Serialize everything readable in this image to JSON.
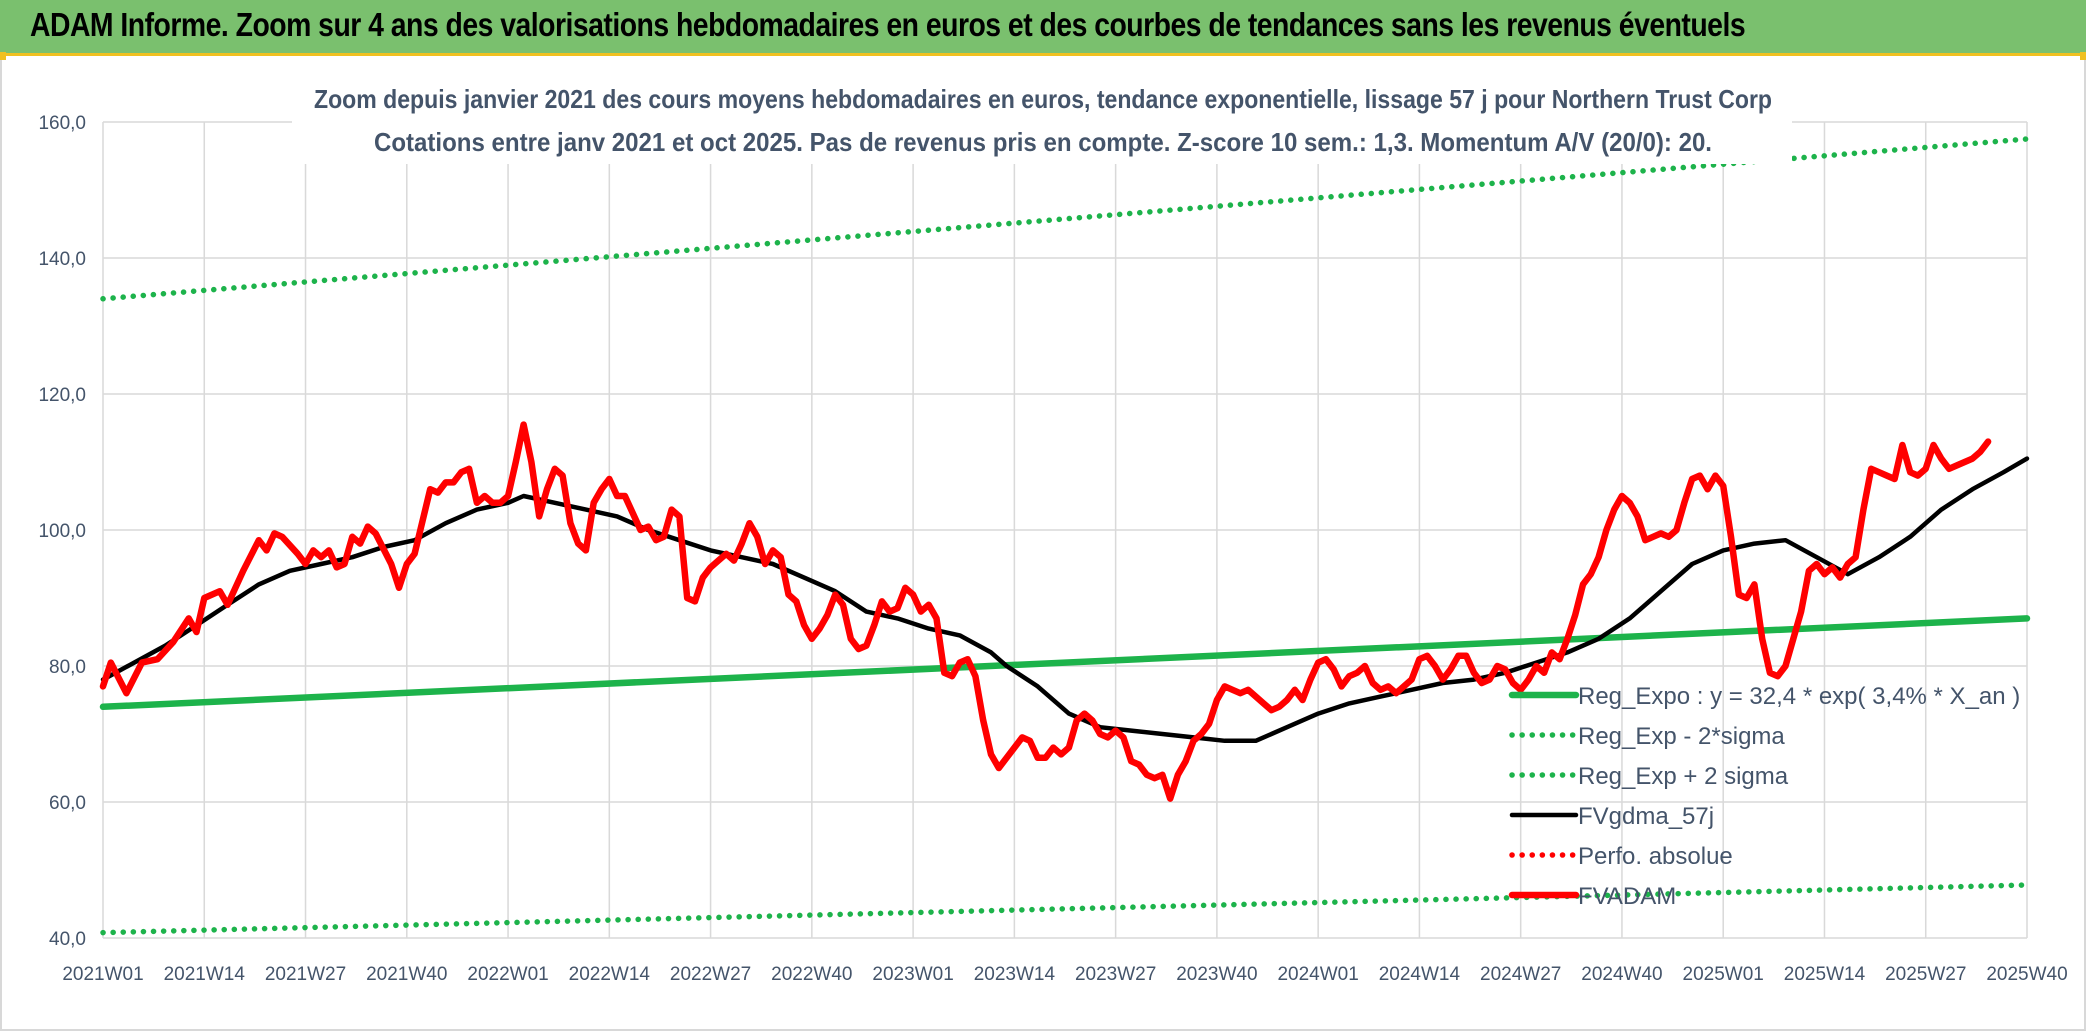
{
  "header": {
    "title": "ADAM Informe. Zoom sur 4 ans des valorisations hebdomadaires en euros et des courbes de tendances sans les revenus éventuels"
  },
  "colors": {
    "header_bg": "#7ac06e",
    "green": "#1db34b",
    "black": "#000000",
    "red": "#ff0000",
    "accent": "#f0c020"
  },
  "chart_data": {
    "type": "line",
    "title_line1": "Zoom depuis janvier 2021 des cours moyens hebdomadaires en euros, tendance exponentielle, lissage 57 j pour Northern Trust Corp",
    "title_line2": "Cotations entre janv 2021 et oct 2025. Pas de revenus pris en compte. Z-score 10 sem.: 1,3. Momentum A/V (20/0): 20.",
    "xlabel": "",
    "ylabel": "",
    "ylim": [
      40,
      160
    ],
    "yticks": [
      "40,0",
      "60,0",
      "80,0",
      "100,0",
      "120,0",
      "140,0",
      "160,0"
    ],
    "yticks_values": [
      40,
      60,
      80,
      100,
      120,
      140,
      160
    ],
    "xlim": [
      0,
      247
    ],
    "xticks": [
      "2021W01",
      "2021W14",
      "2021W27",
      "2021W40",
      "2022W01",
      "2022W14",
      "2022W27",
      "2022W40",
      "2023W01",
      "2023W14",
      "2023W27",
      "2023W40",
      "2024W01",
      "2024W14",
      "2024W27",
      "2024W40",
      "2025W01",
      "2025W14",
      "2025W27",
      "2025W40"
    ],
    "xticks_values": [
      0,
      13,
      26,
      39,
      52,
      65,
      78,
      91,
      104,
      117,
      130,
      143,
      156,
      169,
      182,
      195,
      208,
      221,
      234,
      247
    ],
    "grid": true,
    "legend_position": "bottom-right",
    "series": [
      {
        "name": "Reg_Expo : y = 32,4 * exp( 3,4% *  X_an )",
        "style": "solid-thick",
        "color": "#1db34b",
        "points": [
          [
            0,
            74
          ],
          [
            247,
            87
          ]
        ]
      },
      {
        "name": "Reg_Exp - 2*sigma",
        "style": "dotted",
        "color": "#1db34b",
        "points": [
          [
            0,
            40.8
          ],
          [
            247,
            47.8
          ]
        ]
      },
      {
        "name": "Reg_Exp + 2 sigma",
        "style": "dotted",
        "color": "#1db34b",
        "points": [
          [
            0,
            134
          ],
          [
            247,
            157.5
          ]
        ]
      },
      {
        "name": "FVgdma_57j",
        "style": "solid",
        "color": "#000000",
        "points": [
          [
            0,
            78
          ],
          [
            4,
            80.5
          ],
          [
            8,
            83
          ],
          [
            12,
            86
          ],
          [
            16,
            89
          ],
          [
            20,
            92
          ],
          [
            24,
            94
          ],
          [
            28,
            95
          ],
          [
            32,
            96
          ],
          [
            36,
            97.5
          ],
          [
            40,
            98.5
          ],
          [
            44,
            101
          ],
          [
            48,
            103
          ],
          [
            52,
            104
          ],
          [
            54,
            105
          ],
          [
            58,
            104
          ],
          [
            62,
            103
          ],
          [
            66,
            102
          ],
          [
            70,
            100
          ],
          [
            74,
            98.5
          ],
          [
            78,
            97
          ],
          [
            82,
            96
          ],
          [
            86,
            95
          ],
          [
            90,
            93
          ],
          [
            94,
            91
          ],
          [
            98,
            88
          ],
          [
            102,
            87
          ],
          [
            106,
            85.5
          ],
          [
            110,
            84.5
          ],
          [
            114,
            82
          ],
          [
            116,
            80
          ],
          [
            120,
            77
          ],
          [
            124,
            73
          ],
          [
            128,
            71
          ],
          [
            132,
            70.5
          ],
          [
            136,
            70
          ],
          [
            140,
            69.5
          ],
          [
            144,
            69
          ],
          [
            148,
            69
          ],
          [
            152,
            71
          ],
          [
            156,
            73
          ],
          [
            160,
            74.5
          ],
          [
            164,
            75.5
          ],
          [
            168,
            76.5
          ],
          [
            172,
            77.5
          ],
          [
            176,
            78
          ],
          [
            180,
            79
          ],
          [
            184,
            80.5
          ],
          [
            188,
            82
          ],
          [
            192,
            84
          ],
          [
            196,
            87
          ],
          [
            200,
            91
          ],
          [
            204,
            95
          ],
          [
            208,
            97
          ],
          [
            212,
            98
          ],
          [
            216,
            98.5
          ],
          [
            220,
            96
          ],
          [
            224,
            93.5
          ],
          [
            228,
            96
          ],
          [
            232,
            99
          ],
          [
            236,
            103
          ],
          [
            240,
            106
          ],
          [
            244,
            108.5
          ],
          [
            247,
            110.5
          ]
        ]
      },
      {
        "name": "Perfo. absolue",
        "style": "dotted",
        "color": "#ff0000",
        "points": []
      },
      {
        "name": "FVADAM",
        "style": "solid-thick",
        "color": "#ff0000",
        "points": [
          [
            0,
            77
          ],
          [
            1,
            80.5
          ],
          [
            3,
            76
          ],
          [
            5,
            80.5
          ],
          [
            7,
            81
          ],
          [
            9,
            83.5
          ],
          [
            11,
            87
          ],
          [
            12,
            85
          ],
          [
            13,
            90
          ],
          [
            15,
            91
          ],
          [
            16,
            89
          ],
          [
            18,
            94
          ],
          [
            20,
            98.5
          ],
          [
            21,
            97
          ],
          [
            22,
            99.5
          ],
          [
            23,
            99
          ],
          [
            25,
            96.5
          ],
          [
            26,
            95
          ],
          [
            27,
            97
          ],
          [
            28,
            96
          ],
          [
            29,
            97
          ],
          [
            30,
            94.5
          ],
          [
            31,
            95
          ],
          [
            32,
            99
          ],
          [
            33,
            98
          ],
          [
            34,
            100.5
          ],
          [
            35,
            99.5
          ],
          [
            37,
            95
          ],
          [
            38,
            91.5
          ],
          [
            39,
            95
          ],
          [
            40,
            96.5
          ],
          [
            42,
            106
          ],
          [
            43,
            105.5
          ],
          [
            44,
            107
          ],
          [
            45,
            107
          ],
          [
            46,
            108.5
          ],
          [
            47,
            109
          ],
          [
            48,
            104
          ],
          [
            49,
            105
          ],
          [
            50,
            104
          ],
          [
            51,
            104
          ],
          [
            52,
            105
          ],
          [
            53,
            110
          ],
          [
            54,
            115.5
          ],
          [
            55,
            110
          ],
          [
            56,
            102
          ],
          [
            57,
            106
          ],
          [
            58,
            109
          ],
          [
            59,
            108
          ],
          [
            60,
            101
          ],
          [
            61,
            98
          ],
          [
            62,
            97
          ],
          [
            63,
            104
          ],
          [
            64,
            106
          ],
          [
            65,
            107.5
          ],
          [
            66,
            105
          ],
          [
            67,
            105
          ],
          [
            68,
            102.5
          ],
          [
            69,
            100
          ],
          [
            70,
            100.5
          ],
          [
            71,
            98.5
          ],
          [
            72,
            99
          ],
          [
            73,
            103
          ],
          [
            74,
            102
          ],
          [
            75,
            90
          ],
          [
            76,
            89.5
          ],
          [
            77,
            93
          ],
          [
            78,
            94.5
          ],
          [
            79,
            95.5
          ],
          [
            80,
            96.5
          ],
          [
            81,
            95.5
          ],
          [
            82,
            98
          ],
          [
            83,
            101
          ],
          [
            84,
            99
          ],
          [
            85,
            95
          ],
          [
            86,
            97
          ],
          [
            87,
            96
          ],
          [
            88,
            90.5
          ],
          [
            89,
            89.5
          ],
          [
            90,
            86
          ],
          [
            91,
            84
          ],
          [
            92,
            85.5
          ],
          [
            93,
            87.5
          ],
          [
            94,
            90.5
          ],
          [
            95,
            89
          ],
          [
            96,
            84
          ],
          [
            97,
            82.5
          ],
          [
            98,
            83
          ],
          [
            99,
            86
          ],
          [
            100,
            89.5
          ],
          [
            101,
            88
          ],
          [
            102,
            88.5
          ],
          [
            103,
            91.5
          ],
          [
            104,
            90.5
          ],
          [
            105,
            88
          ],
          [
            106,
            89
          ],
          [
            107,
            87
          ],
          [
            108,
            79
          ],
          [
            109,
            78.5
          ],
          [
            110,
            80.5
          ],
          [
            111,
            81
          ],
          [
            112,
            78.5
          ],
          [
            113,
            72
          ],
          [
            114,
            67
          ],
          [
            115,
            65
          ],
          [
            116,
            66.5
          ],
          [
            117,
            68
          ],
          [
            118,
            69.5
          ],
          [
            119,
            69
          ],
          [
            120,
            66.5
          ],
          [
            121,
            66.5
          ],
          [
            122,
            68
          ],
          [
            123,
            67
          ],
          [
            124,
            68
          ],
          [
            125,
            72
          ],
          [
            126,
            73
          ],
          [
            127,
            72
          ],
          [
            128,
            70
          ],
          [
            129,
            69.5
          ],
          [
            130,
            70.5
          ],
          [
            131,
            69.5
          ],
          [
            132,
            66
          ],
          [
            133,
            65.5
          ],
          [
            134,
            64
          ],
          [
            135,
            63.5
          ],
          [
            136,
            64
          ],
          [
            137,
            60.5
          ],
          [
            138,
            64
          ],
          [
            139,
            66
          ],
          [
            140,
            69
          ],
          [
            141,
            70
          ],
          [
            142,
            71.5
          ],
          [
            143,
            75
          ],
          [
            144,
            77
          ],
          [
            145,
            76.5
          ],
          [
            146,
            76
          ],
          [
            147,
            76.5
          ],
          [
            148,
            75.5
          ],
          [
            149,
            74.5
          ],
          [
            150,
            73.5
          ],
          [
            151,
            74
          ],
          [
            152,
            75
          ],
          [
            153,
            76.5
          ],
          [
            154,
            75
          ],
          [
            155,
            78
          ],
          [
            156,
            80.5
          ],
          [
            157,
            81
          ],
          [
            158,
            79.5
          ],
          [
            159,
            77
          ],
          [
            160,
            78.5
          ],
          [
            161,
            79
          ],
          [
            162,
            80
          ],
          [
            163,
            77.5
          ],
          [
            164,
            76.5
          ],
          [
            165,
            77
          ],
          [
            166,
            76
          ],
          [
            167,
            77
          ],
          [
            168,
            78
          ],
          [
            169,
            81
          ],
          [
            170,
            81.5
          ],
          [
            171,
            80
          ],
          [
            172,
            78
          ],
          [
            173,
            79.5
          ],
          [
            174,
            81.5
          ],
          [
            175,
            81.5
          ],
          [
            176,
            79
          ],
          [
            177,
            77.5
          ],
          [
            178,
            78
          ],
          [
            179,
            80
          ],
          [
            180,
            79.5
          ],
          [
            181,
            77.5
          ],
          [
            182,
            76.5
          ],
          [
            183,
            78
          ],
          [
            184,
            80
          ],
          [
            185,
            79
          ],
          [
            186,
            82
          ],
          [
            187,
            81
          ],
          [
            188,
            84
          ],
          [
            189,
            87.5
          ],
          [
            190,
            92
          ],
          [
            191,
            93.5
          ],
          [
            192,
            96
          ],
          [
            193,
            100
          ],
          [
            194,
            103
          ],
          [
            195,
            105
          ],
          [
            196,
            104
          ],
          [
            197,
            102
          ],
          [
            198,
            98.5
          ],
          [
            199,
            99
          ],
          [
            200,
            99.5
          ],
          [
            201,
            99
          ],
          [
            202,
            100
          ],
          [
            203,
            104
          ],
          [
            204,
            107.5
          ],
          [
            205,
            108
          ],
          [
            206,
            106
          ],
          [
            207,
            108
          ],
          [
            208,
            106.5
          ],
          [
            209,
            99
          ],
          [
            210,
            90.5
          ],
          [
            211,
            90
          ],
          [
            212,
            92
          ],
          [
            213,
            84
          ],
          [
            214,
            79
          ],
          [
            215,
            78.5
          ],
          [
            216,
            80
          ],
          [
            217,
            84
          ],
          [
            218,
            88
          ],
          [
            219,
            94
          ],
          [
            220,
            95
          ],
          [
            221,
            93.5
          ],
          [
            222,
            94.5
          ],
          [
            223,
            93
          ],
          [
            224,
            95
          ],
          [
            225,
            96
          ],
          [
            226,
            103
          ],
          [
            227,
            109
          ],
          [
            228,
            108.5
          ],
          [
            229,
            108
          ],
          [
            230,
            107.5
          ],
          [
            231,
            112.5
          ],
          [
            232,
            108.5
          ],
          [
            233,
            108
          ],
          [
            234,
            109
          ],
          [
            235,
            112.5
          ],
          [
            236,
            110.5
          ],
          [
            237,
            109
          ],
          [
            238,
            109.5
          ],
          [
            239,
            110
          ],
          [
            240,
            110.5
          ],
          [
            241,
            111.5
          ],
          [
            242,
            113
          ]
        ]
      }
    ]
  }
}
